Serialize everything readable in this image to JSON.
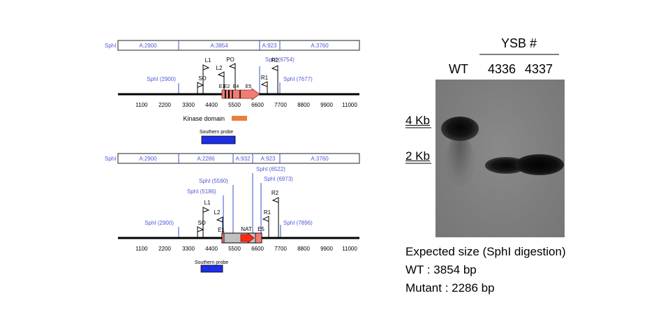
{
  "colors": {
    "blue_label": "#4f5bd5",
    "blue_line": "#3a4fd0",
    "exon": "#f07d73",
    "kinase": "#ee7d3a",
    "probe": "#1c2ee6",
    "nat": "#ff2a10",
    "cassette": "#c0c0c0"
  },
  "top_map": {
    "site_label": "SphI",
    "segments": [
      "A:2900",
      "A:3854",
      "A:923",
      "A:3760"
    ],
    "scale_ticks": [
      "1100",
      "2200",
      "3300",
      "4400",
      "5500",
      "6600",
      "7700",
      "8800",
      "9900",
      "11000"
    ],
    "sites": [
      "SphI (2900)",
      "SphI (6754)",
      "SphI (7677)"
    ],
    "primers": [
      "SO",
      "L1",
      "L2",
      "PO",
      "R1",
      "R2"
    ],
    "exons": [
      "E1",
      "E2",
      "E4",
      "E5"
    ],
    "kinase_label": "Kinase domain",
    "probe_label": "Southern probe"
  },
  "bottom_map": {
    "site_label": "SphI",
    "segments": [
      "A:2900",
      "A:2286",
      "A:932",
      "A:923",
      "A:3760"
    ],
    "scale_ticks": [
      "1100",
      "2200",
      "3300",
      "4400",
      "5500",
      "6600",
      "7700",
      "8800",
      "9900",
      "11000"
    ],
    "sites": [
      "SphI (2900)",
      "SphI (5186)",
      "SphI (5590)",
      "SphI (6522)",
      "SphI (6973)",
      "SphI (7896)"
    ],
    "primers": [
      "SO",
      "L1",
      "L2",
      "R1",
      "R2"
    ],
    "exons": [
      "E1",
      "E5"
    ],
    "marker_label": "NAT",
    "probe_label": "Southern probe"
  },
  "blot": {
    "group_header": "YSB #",
    "lanes": [
      "WT",
      "4336",
      "4337"
    ],
    "markers": [
      "4 Kb",
      "2 Kb"
    ]
  },
  "expected": {
    "title": "Expected size (SphI digestion)",
    "wt": "WT : 3854 bp",
    "mutant": "Mutant : 2286 bp"
  }
}
